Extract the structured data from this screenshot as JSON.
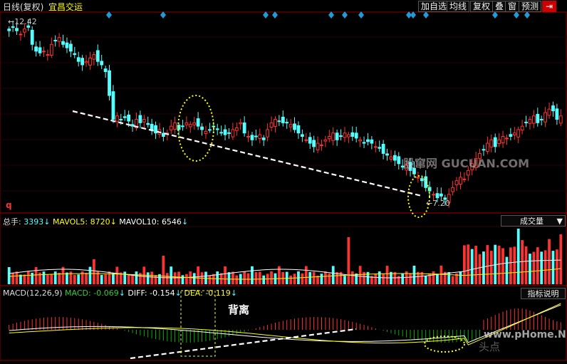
{
  "header": {
    "period": "日线(复权)",
    "stock_name": "宜昌交运",
    "toolbar": [
      "加自选",
      "均线",
      "复权",
      "叠",
      "窗",
      "预测"
    ],
    "close_icon": "panel-close-icon"
  },
  "price_panel": {
    "high_marker": "12.42",
    "low_marker": "7.20",
    "corner_label": "q",
    "annotations": [
      "trendline-dashed",
      "ellipse-dotted"
    ]
  },
  "volume_panel": {
    "label": "总手:",
    "value": "3393",
    "mavol5_label": "MAVOL5:",
    "mavol5_value": "8720",
    "mavol10_label": "MAVOL10:",
    "mavol10_value": "6546",
    "dropdown": "成交量"
  },
  "macd_panel": {
    "label": "MACD(12,26,9)",
    "macd_label": "MACD:",
    "macd_value": "-0.069",
    "diff_label": "DIFF:",
    "diff_value": "-0.154",
    "dea_label": "DEA:",
    "dea_value": "-0.119",
    "button": "指标说明",
    "annotation": "背离"
  },
  "watermarks": {
    "site1": "股窜网 GUCUAN.COM",
    "site2": "www.pHome.NET",
    "site3": "头点"
  },
  "colors": {
    "up": "#ff3232",
    "down": "#54ffff",
    "ma5": "#ffffff",
    "ma10": "#ffff00",
    "annotation": "#ffff00",
    "grid": "#8b0000"
  },
  "chart_data": {
    "type": "candlestick",
    "ylim": [
      7.0,
      12.6
    ],
    "high": 12.42,
    "low": 7.2,
    "closes": [
      12.2,
      12.3,
      12.2,
      12.1,
      12.25,
      12.3,
      11.8,
      11.6,
      11.55,
      11.6,
      11.5,
      11.8,
      11.9,
      12.0,
      11.8,
      11.7,
      11.6,
      11.5,
      11.3,
      11.2,
      11.3,
      11.4,
      11.5,
      11.3,
      11.2,
      11.0,
      10.3,
      9.6,
      9.7,
      9.6,
      9.65,
      9.55,
      9.4,
      9.6,
      9.5,
      9.6,
      9.45,
      9.3,
      9.2,
      9.3,
      9.1,
      9.2,
      9.4,
      9.5,
      9.3,
      9.4,
      9.5,
      9.45,
      9.5,
      9.4,
      9.3,
      9.25,
      9.3,
      9.4,
      9.3,
      9.2,
      9.15,
      9.2,
      9.3,
      9.35,
      9.5,
      9.2,
      9.1,
      9.0,
      9.1,
      9.15,
      9.0,
      9.3,
      9.5,
      9.6,
      9.55,
      9.5,
      9.5,
      9.45,
      9.3,
      9.2,
      9.1,
      9.0,
      8.9,
      8.8,
      8.9,
      8.85,
      9.0,
      9.1,
      9.2,
      9.0,
      9.1,
      9.2,
      9.15,
      9.1,
      9.05,
      9.0,
      8.9,
      8.95,
      8.9,
      8.8,
      8.75,
      8.6,
      8.55,
      8.5,
      8.4,
      8.3,
      8.2,
      8.25,
      8.1,
      8.0,
      7.9,
      7.8,
      7.6,
      7.5,
      7.4,
      7.3,
      7.35,
      7.25,
      7.4,
      7.6,
      7.8,
      7.9,
      7.85,
      8.1,
      8.3,
      8.45,
      8.6,
      8.7,
      8.9,
      9.0,
      8.8,
      9.0,
      9.1,
      9.05,
      9.1,
      9.2,
      9.3,
      9.4,
      9.5,
      9.6,
      9.7,
      9.5,
      9.6,
      9.8,
      9.9,
      9.85,
      9.6,
      9.7
    ],
    "volume_ylim": [
      0,
      60000
    ],
    "volume_note": "bars drawn; values read by eye",
    "macd_ylim": [
      -0.6,
      0.6
    ]
  }
}
